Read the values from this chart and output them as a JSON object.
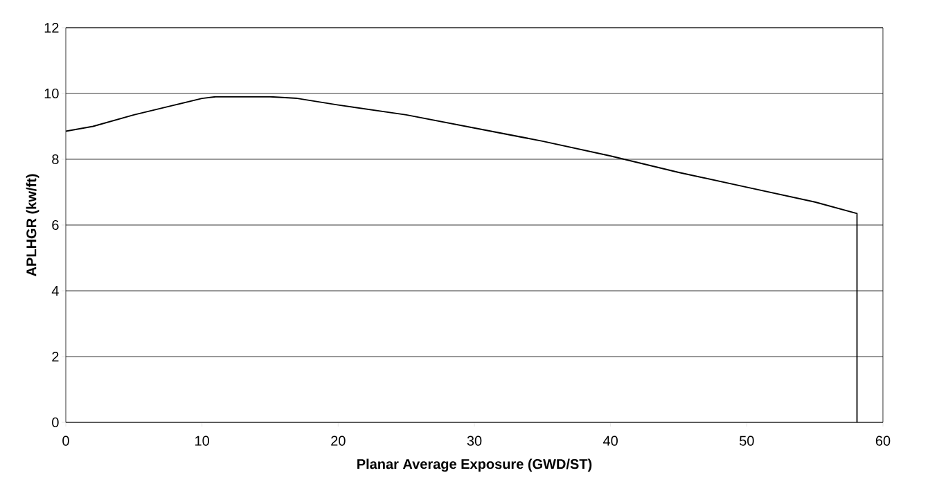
{
  "chart_data": {
    "type": "line",
    "xlabel": "Planar Average Exposure (GWD/ST)",
    "ylabel": "APLHGR (kw/ft)",
    "x": [
      0,
      2,
      5,
      8,
      10,
      11,
      15,
      17,
      20,
      25,
      30,
      35,
      40,
      45,
      50,
      55,
      58.1,
      58.1
    ],
    "values": [
      8.85,
      9.0,
      9.35,
      9.65,
      9.85,
      9.9,
      9.9,
      9.85,
      9.65,
      9.35,
      8.95,
      8.55,
      8.1,
      7.6,
      7.15,
      6.7,
      6.35,
      0
    ],
    "color": "#000000",
    "xlim": [
      0,
      60
    ],
    "ylim": [
      0,
      12
    ],
    "xticks": [
      0,
      10,
      20,
      30,
      40,
      50,
      60
    ],
    "yticks": [
      0,
      2,
      4,
      6,
      8,
      10,
      12
    ],
    "grid": "y",
    "marker": "none",
    "line_style": "solid"
  }
}
